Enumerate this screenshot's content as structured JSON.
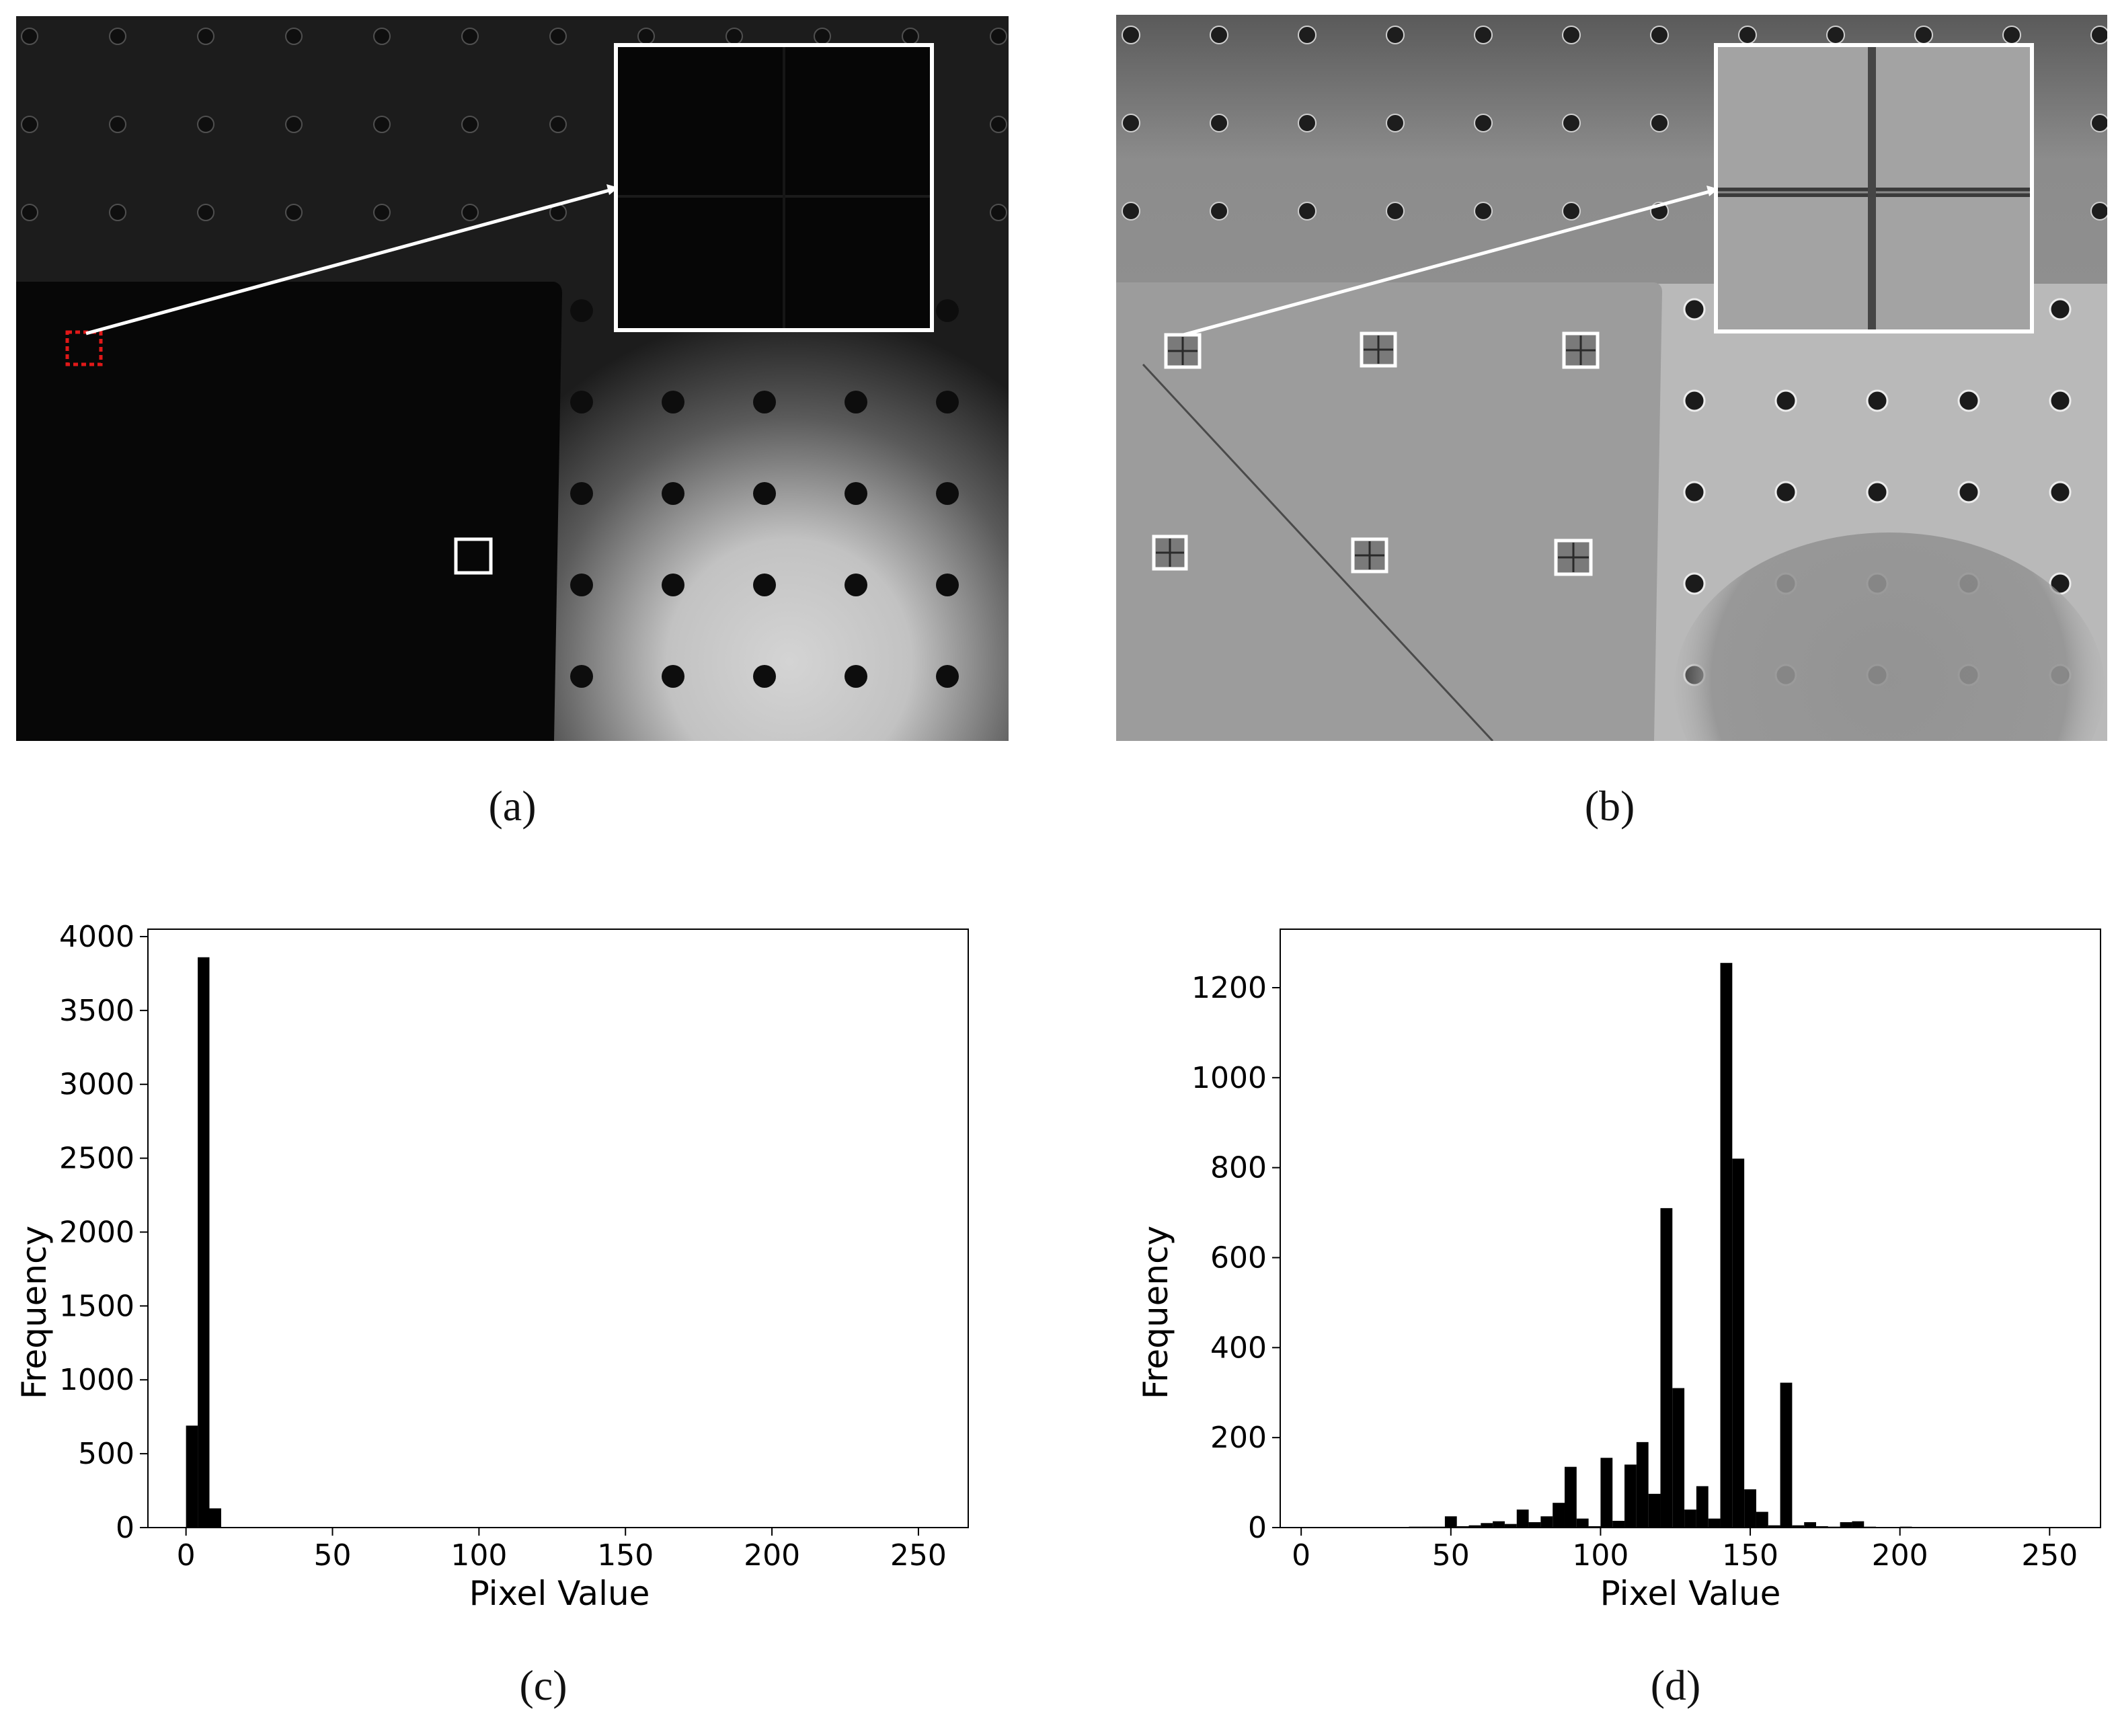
{
  "captions": {
    "a": "(a)",
    "b": "(b)",
    "c": "(c)",
    "d": "(d)"
  },
  "chart_data": [
    {
      "type": "bar",
      "panel": "(c)",
      "xlabel": "Pixel Value",
      "ylabel": "Frequency",
      "xlim": [
        -13,
        267
      ],
      "ylim": [
        0,
        4050
      ],
      "xticks": [
        0,
        50,
        100,
        150,
        200,
        250
      ],
      "yticks": [
        0,
        500,
        1000,
        1500,
        2000,
        2500,
        3000,
        3500,
        4000
      ],
      "bin_width": 4,
      "bins": [
        {
          "x": 0,
          "y": 690
        },
        {
          "x": 4,
          "y": 3860
        },
        {
          "x": 8,
          "y": 130
        }
      ]
    },
    {
      "type": "bar",
      "panel": "(d)",
      "xlabel": "Pixel Value",
      "ylabel": "Frequency",
      "xlim": [
        -7,
        267
      ],
      "ylim": [
        0,
        1330
      ],
      "xticks": [
        0,
        50,
        100,
        150,
        200,
        250
      ],
      "yticks": [
        0,
        200,
        400,
        600,
        800,
        1000,
        1200
      ],
      "bin_width": 4,
      "bins": [
        {
          "x": 36,
          "y": 2
        },
        {
          "x": 40,
          "y": 2
        },
        {
          "x": 44,
          "y": 2
        },
        {
          "x": 48,
          "y": 25
        },
        {
          "x": 52,
          "y": 3
        },
        {
          "x": 56,
          "y": 5
        },
        {
          "x": 60,
          "y": 10
        },
        {
          "x": 64,
          "y": 14
        },
        {
          "x": 68,
          "y": 8
        },
        {
          "x": 72,
          "y": 40
        },
        {
          "x": 76,
          "y": 12
        },
        {
          "x": 80,
          "y": 25
        },
        {
          "x": 84,
          "y": 55
        },
        {
          "x": 88,
          "y": 135
        },
        {
          "x": 92,
          "y": 20
        },
        {
          "x": 96,
          "y": 3
        },
        {
          "x": 100,
          "y": 155
        },
        {
          "x": 104,
          "y": 15
        },
        {
          "x": 108,
          "y": 140
        },
        {
          "x": 112,
          "y": 190
        },
        {
          "x": 116,
          "y": 75
        },
        {
          "x": 120,
          "y": 710
        },
        {
          "x": 124,
          "y": 310
        },
        {
          "x": 128,
          "y": 40
        },
        {
          "x": 132,
          "y": 92
        },
        {
          "x": 136,
          "y": 20
        },
        {
          "x": 140,
          "y": 1255
        },
        {
          "x": 144,
          "y": 820
        },
        {
          "x": 148,
          "y": 85
        },
        {
          "x": 152,
          "y": 35
        },
        {
          "x": 156,
          "y": 5
        },
        {
          "x": 160,
          "y": 322
        },
        {
          "x": 164,
          "y": 5
        },
        {
          "x": 168,
          "y": 12
        },
        {
          "x": 172,
          "y": 3
        },
        {
          "x": 176,
          "y": 2
        },
        {
          "x": 180,
          "y": 12
        },
        {
          "x": 184,
          "y": 14
        },
        {
          "x": 188,
          "y": 2
        },
        {
          "x": 200,
          "y": 2
        }
      ]
    }
  ]
}
